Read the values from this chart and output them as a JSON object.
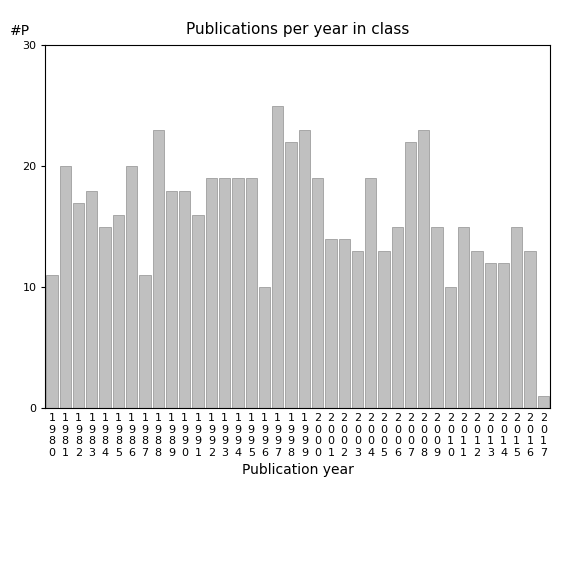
{
  "years": [
    1980,
    1981,
    1982,
    1983,
    1984,
    1985,
    1986,
    1987,
    1988,
    1989,
    1990,
    1991,
    1992,
    1993,
    1994,
    1995,
    1996,
    1997,
    1998,
    1999,
    2000,
    2001,
    2002,
    2003,
    2004,
    2005,
    2006,
    2007,
    2008,
    2009,
    2010,
    2011,
    2012,
    2013,
    2014,
    2015,
    2016,
    2017
  ],
  "values": [
    11,
    20,
    17,
    18,
    15,
    16,
    20,
    11,
    23,
    18,
    18,
    16,
    19,
    19,
    19,
    19,
    10,
    25,
    22,
    23,
    19,
    14,
    14,
    13,
    19,
    13,
    15,
    22,
    23,
    15,
    10,
    15,
    13,
    12,
    12,
    15,
    13,
    1
  ],
  "bar_color": "#c0c0c0",
  "bar_edge_color": "#909090",
  "title": "Publications per year in class",
  "xlabel": "Publication year",
  "ylabel": "#P",
  "ylim": [
    0,
    30
  ],
  "yticks": [
    0,
    10,
    20,
    30
  ],
  "title_fontsize": 11,
  "label_fontsize": 10,
  "tick_fontsize": 8,
  "bg_color": "#ffffff"
}
